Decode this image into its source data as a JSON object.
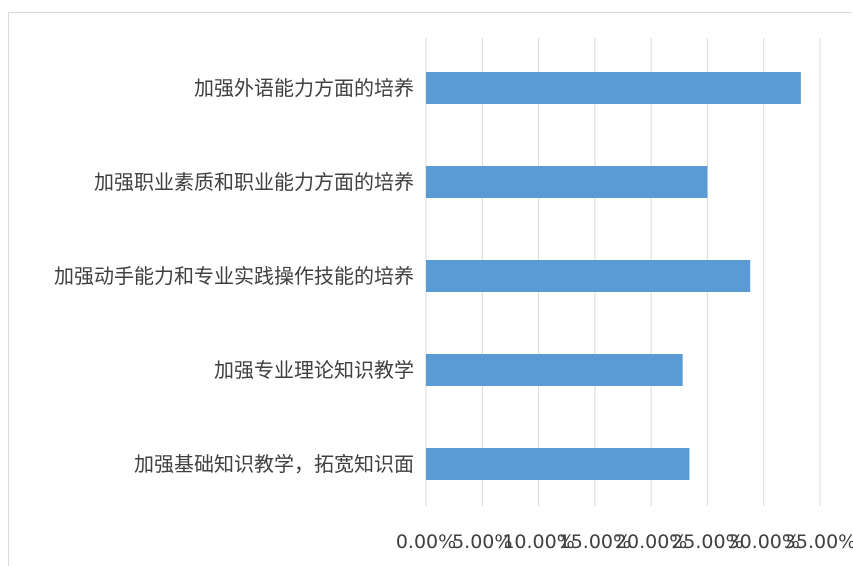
{
  "chart_data": {
    "type": "bar",
    "orientation": "horizontal",
    "title": "",
    "xlabel": "",
    "ylabel": "",
    "categories": [
      "加强外语能力方面的培养",
      "加强职业素质和职业能力方面的培养",
      "加强动手能力和专业实践操作技能的培养",
      "加强专业理论知识教学",
      "加强基础知识教学，拓宽知识面"
    ],
    "values": [
      0.333,
      0.25,
      0.288,
      0.228,
      0.234
    ],
    "xlim": [
      0,
      0.35
    ],
    "x_ticks": [
      0,
      0.05,
      0.1,
      0.15,
      0.2,
      0.25,
      0.3,
      0.35
    ],
    "x_tick_labels": [
      "0.00%",
      "5.00%",
      "10.00%",
      "15.00%",
      "20.00%",
      "25.00%",
      "30.00%",
      "35.00%"
    ],
    "grid": "vertical",
    "legend": "none",
    "bar_color": "#5b9bd5",
    "grid_color": "#d9d9d9"
  }
}
